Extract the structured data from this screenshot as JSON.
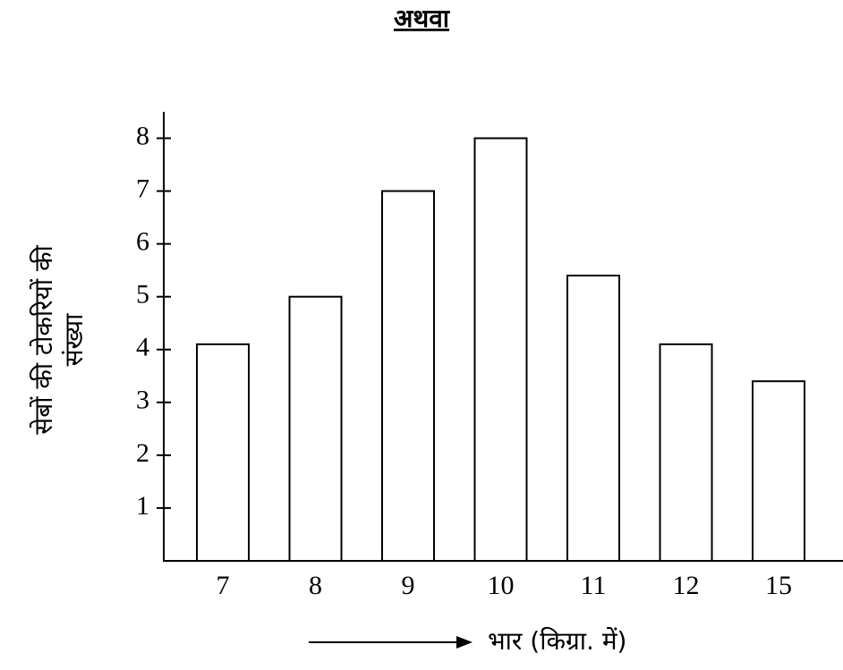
{
  "chart_data": {
    "type": "bar",
    "title": "अथवा",
    "ylabel": [
      "सेबों की टोकरियों  की",
      "संख्या"
    ],
    "xlabel": "भार  (किग्रा. में)",
    "categories": [
      "7",
      "8",
      "9",
      "10",
      "11",
      "12",
      "15"
    ],
    "values": [
      4.1,
      5,
      7,
      8,
      5.4,
      4.1,
      3.4
    ],
    "color": "#ffffff",
    "ylim": [
      0,
      8.5
    ],
    "yticks": [
      1,
      2,
      3,
      4,
      5,
      6,
      7,
      8
    ],
    "grid": false
  }
}
